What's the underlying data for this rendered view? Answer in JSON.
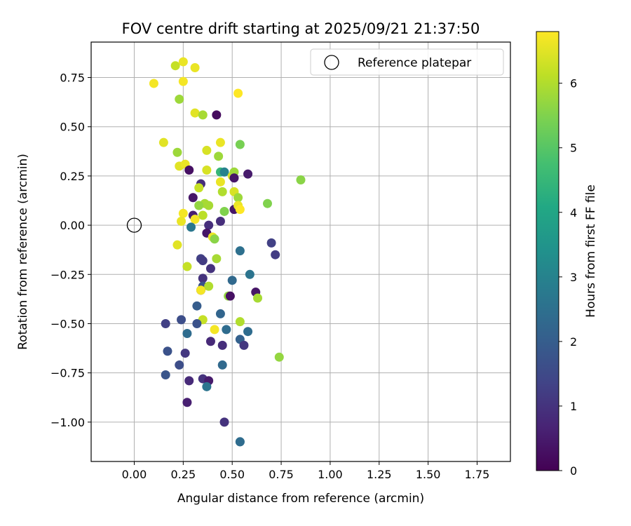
{
  "chart_data": {
    "type": "scatter",
    "title": "FOV centre drift starting at 2025/09/21 21:37:50",
    "xlabel": "Angular distance from reference (arcmin)",
    "ylabel": "Rotation from reference (arcmin)",
    "xlim": [
      -0.22,
      1.92
    ],
    "ylim": [
      -1.2,
      0.93
    ],
    "xticks": [
      "0.00",
      "0.25",
      "0.50",
      "0.75",
      "1.00",
      "1.25",
      "1.50",
      "1.75"
    ],
    "yticks": [
      "−1.00",
      "−0.75",
      "−0.50",
      "−0.25",
      "0.00",
      "0.25",
      "0.50",
      "0.75"
    ],
    "grid": true,
    "legend": {
      "placement": "top-right",
      "entries": [
        "Reference platepar"
      ]
    },
    "reference_point": {
      "x": 0.0,
      "y": 0.0
    },
    "colorbar": {
      "label": "Hours from first FF file",
      "min": 0,
      "max": 6.8,
      "ticks": [
        "0",
        "1",
        "2",
        "3",
        "4",
        "5",
        "6"
      ],
      "colormap": "viridis"
    },
    "series": [
      {
        "points": [
          [
            0.21,
            0.81,
            6.2
          ],
          [
            0.25,
            0.83,
            6.6
          ],
          [
            0.31,
            0.8,
            6.6
          ],
          [
            0.1,
            0.72,
            6.7
          ],
          [
            0.25,
            0.73,
            6.7
          ],
          [
            0.23,
            0.64,
            5.8
          ],
          [
            0.53,
            0.67,
            6.8
          ],
          [
            0.31,
            0.57,
            6.5
          ],
          [
            0.35,
            0.56,
            5.9
          ],
          [
            0.42,
            0.56,
            0.2
          ],
          [
            0.15,
            0.42,
            6.5
          ],
          [
            0.44,
            0.42,
            6.6
          ],
          [
            0.54,
            0.41,
            5.4
          ],
          [
            0.22,
            0.37,
            5.8
          ],
          [
            0.37,
            0.38,
            6.4
          ],
          [
            0.43,
            0.35,
            5.8
          ],
          [
            0.23,
            0.3,
            6.5
          ],
          [
            0.26,
            0.31,
            6.6
          ],
          [
            0.28,
            0.28,
            0.3
          ],
          [
            0.37,
            0.28,
            6.4
          ],
          [
            0.44,
            0.27,
            4.5
          ],
          [
            0.46,
            0.27,
            3.0
          ],
          [
            0.5,
            0.25,
            6.4
          ],
          [
            0.51,
            0.27,
            5.8
          ],
          [
            0.51,
            0.24,
            0.4
          ],
          [
            0.58,
            0.26,
            0.5
          ],
          [
            0.85,
            0.23,
            5.6
          ],
          [
            0.34,
            0.21,
            0.9
          ],
          [
            0.44,
            0.22,
            6.6
          ],
          [
            0.33,
            0.19,
            6.2
          ],
          [
            0.45,
            0.17,
            6.0
          ],
          [
            0.51,
            0.17,
            6.4
          ],
          [
            0.3,
            0.14,
            0.4
          ],
          [
            0.53,
            0.14,
            5.8
          ],
          [
            0.68,
            0.11,
            5.5
          ],
          [
            0.36,
            0.11,
            5.9
          ],
          [
            0.38,
            0.1,
            5.9
          ],
          [
            0.33,
            0.1,
            5.7
          ],
          [
            0.46,
            0.07,
            5.5
          ],
          [
            0.51,
            0.08,
            0.4
          ],
          [
            0.53,
            0.1,
            6.6
          ],
          [
            0.54,
            0.08,
            6.8
          ],
          [
            0.25,
            0.06,
            6.7
          ],
          [
            0.35,
            0.05,
            6.1
          ],
          [
            0.3,
            0.05,
            0.6
          ],
          [
            0.31,
            0.03,
            6.7
          ],
          [
            0.44,
            0.02,
            0.9
          ],
          [
            0.24,
            0.02,
            6.6
          ],
          [
            0.38,
            0.0,
            0.9
          ],
          [
            0.29,
            -0.01,
            2.7
          ],
          [
            0.37,
            -0.04,
            0.4
          ],
          [
            0.4,
            -0.06,
            6.6
          ],
          [
            0.41,
            -0.07,
            5.6
          ],
          [
            0.22,
            -0.1,
            6.5
          ],
          [
            0.54,
            -0.13,
            2.5
          ],
          [
            0.7,
            -0.09,
            1.3
          ],
          [
            0.72,
            -0.15,
            1.2
          ],
          [
            0.34,
            -0.17,
            1.3
          ],
          [
            0.35,
            -0.18,
            1.2
          ],
          [
            0.42,
            -0.17,
            5.9
          ],
          [
            0.27,
            -0.21,
            6.2
          ],
          [
            0.39,
            -0.22,
            1.0
          ],
          [
            0.59,
            -0.25,
            2.6
          ],
          [
            0.35,
            -0.27,
            1.0
          ],
          [
            0.5,
            -0.28,
            2.3
          ],
          [
            0.35,
            -0.31,
            1.7
          ],
          [
            0.38,
            -0.31,
            6.0
          ],
          [
            0.34,
            -0.33,
            0.7
          ],
          [
            0.34,
            -0.33,
            6.7
          ],
          [
            0.62,
            -0.34,
            0.4
          ],
          [
            0.48,
            -0.36,
            5.7
          ],
          [
            0.49,
            -0.36,
            0.3
          ],
          [
            0.63,
            -0.37,
            5.9
          ],
          [
            0.32,
            -0.41,
            2.0
          ],
          [
            0.44,
            -0.45,
            2.2
          ],
          [
            0.35,
            -0.48,
            6.2
          ],
          [
            0.24,
            -0.48,
            1.6
          ],
          [
            0.16,
            -0.5,
            1.3
          ],
          [
            0.32,
            -0.5,
            1.7
          ],
          [
            0.54,
            -0.49,
            6.0
          ],
          [
            0.41,
            -0.53,
            6.7
          ],
          [
            0.47,
            -0.53,
            2.4
          ],
          [
            0.27,
            -0.55,
            2.4
          ],
          [
            0.58,
            -0.54,
            2.4
          ],
          [
            0.54,
            -0.58,
            2.1
          ],
          [
            0.39,
            -0.59,
            0.8
          ],
          [
            0.45,
            -0.61,
            0.9
          ],
          [
            0.56,
            -0.61,
            1.1
          ],
          [
            0.17,
            -0.64,
            1.7
          ],
          [
            0.26,
            -0.65,
            1.1
          ],
          [
            0.74,
            -0.67,
            5.7
          ],
          [
            0.23,
            -0.71,
            1.6
          ],
          [
            0.45,
            -0.71,
            2.3
          ],
          [
            0.16,
            -0.76,
            1.8
          ],
          [
            0.35,
            -0.78,
            1.0
          ],
          [
            0.28,
            -0.79,
            0.8
          ],
          [
            0.38,
            -0.79,
            0.5
          ],
          [
            0.37,
            -0.82,
            2.6
          ],
          [
            0.27,
            -0.9,
            0.6
          ],
          [
            0.46,
            -1.0,
            1.0
          ],
          [
            0.54,
            -1.1,
            2.7
          ],
          [
            0.54,
            -1.1,
            2.4
          ]
        ]
      }
    ]
  }
}
